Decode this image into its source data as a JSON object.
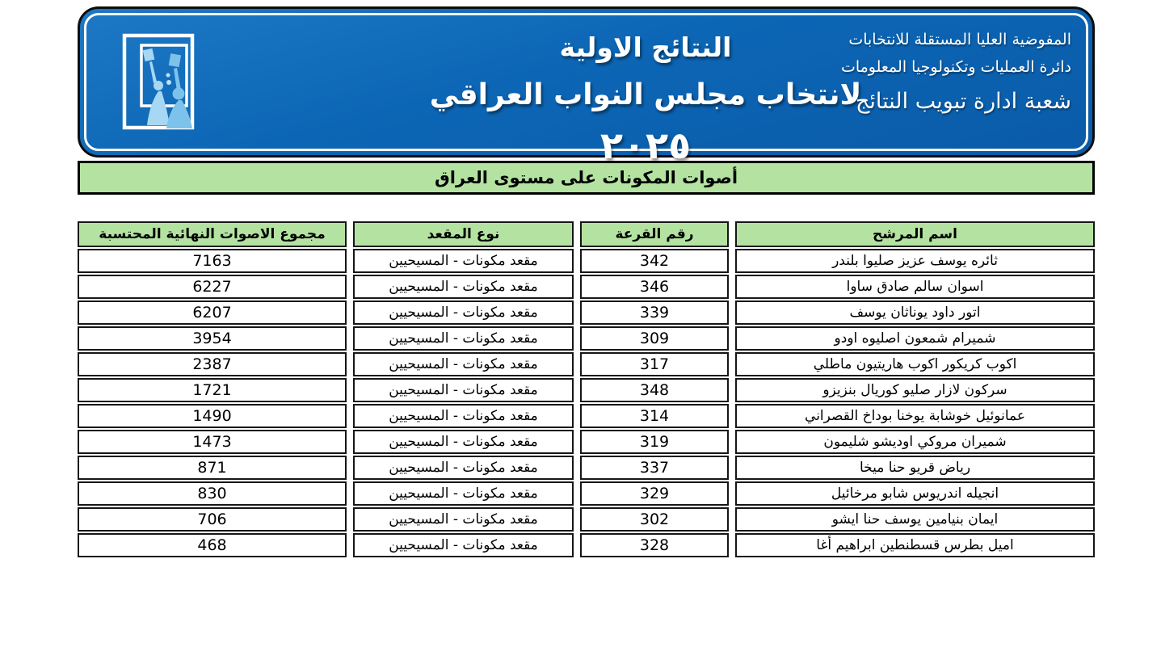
{
  "banner": {
    "org_line1": "المفوضية العليا المستقلة للانتخابات",
    "org_line2": "دائرة العمليات وتكنولوجيا المعلومات",
    "org_line3": "شعبة ادارة تبويب النتائج",
    "title_line1": "النتائج الاولية",
    "title_line2_text": "لانتخاب مجلس النواب العراقي",
    "title_line2_year": "٢٠٢٥",
    "logo": "ihec-ballot-logo"
  },
  "section": {
    "title": "أصوات المكونات على مستوى العراق"
  },
  "table": {
    "columns": [
      "اسم المرشح",
      "رقم القرعة",
      "نوع المقعد",
      "مجموع الاصوات النهائية المحتسبة"
    ],
    "rows": [
      {
        "name": "ثائره يوسف عزيز صليوا بلندر",
        "lottery": "342",
        "seat": "مقعد مكونات - المسيحيين",
        "votes": "7163"
      },
      {
        "name": "اسوان سالم صادق ساوا",
        "lottery": "346",
        "seat": "مقعد مكونات - المسيحيين",
        "votes": "6227"
      },
      {
        "name": "اتور داود يوناثان يوسف",
        "lottery": "339",
        "seat": "مقعد مكونات - المسيحيين",
        "votes": "6207"
      },
      {
        "name": "شميرام شمعون اصليوه اودو",
        "lottery": "309",
        "seat": "مقعد مكونات - المسيحيين",
        "votes": "3954"
      },
      {
        "name": "اكوب كريكور اكوب هاريتيون ماطلي",
        "lottery": "317",
        "seat": "مقعد مكونات - المسيحيين",
        "votes": "2387"
      },
      {
        "name": "سركون لازار صليو كوريال بنزيزو",
        "lottery": "348",
        "seat": "مقعد مكونات - المسيحيين",
        "votes": "1721"
      },
      {
        "name": "عمانوئيل خوشابة يوخنا بوداخ القصراني",
        "lottery": "314",
        "seat": "مقعد مكونات - المسيحيين",
        "votes": "1490"
      },
      {
        "name": "شميران مروكي اوديشو شليمون",
        "lottery": "319",
        "seat": "مقعد مكونات - المسيحيين",
        "votes": "1473"
      },
      {
        "name": "رياض قريو حنا ميخا",
        "lottery": "337",
        "seat": "مقعد مكونات - المسيحيين",
        "votes": "871"
      },
      {
        "name": "انجيله اندريوس شابو مرخائيل",
        "lottery": "329",
        "seat": "مقعد مكونات - المسيحيين",
        "votes": "830"
      },
      {
        "name": "ايمان بنيامين يوسف حنا ايشو",
        "lottery": "302",
        "seat": "مقعد مكونات - المسيحيين",
        "votes": "706"
      },
      {
        "name": "اميل بطرس قسطنطين ابراهيم أغا",
        "lottery": "328",
        "seat": "مقعد مكونات - المسيحيين",
        "votes": "468"
      }
    ]
  },
  "colors": {
    "banner_blue": "#0c66b5",
    "section_green": "#b4e3a1",
    "border_black": "#161616"
  }
}
